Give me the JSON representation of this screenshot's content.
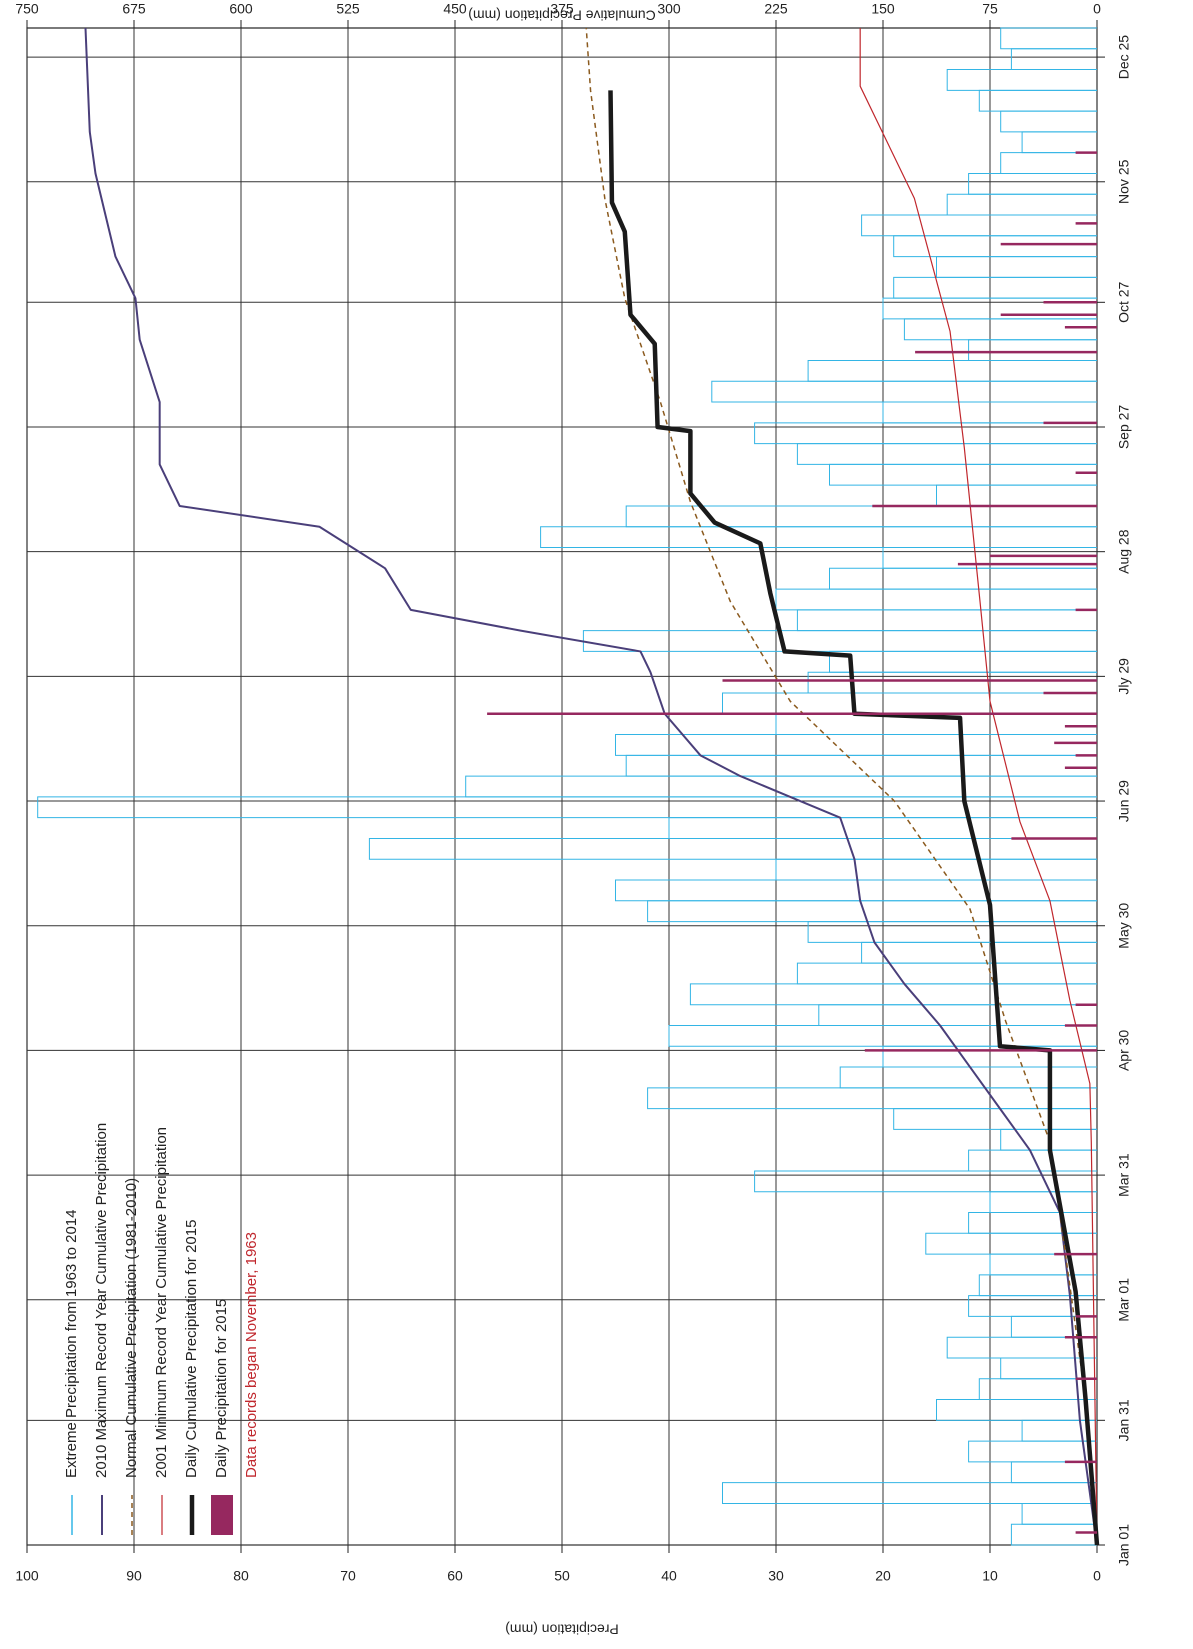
{
  "chart_data": {
    "type": "line",
    "x_label": null,
    "y_label": "Precipitation (mm)",
    "y2_label": "Cumulative Precipitation (mm)",
    "xlim": [
      0,
      365
    ],
    "xticks": [
      {
        "value": 0,
        "label": "Jan 01"
      },
      {
        "value": 30,
        "label": "Jan 31"
      },
      {
        "value": 59,
        "label": "Mar 01"
      },
      {
        "value": 89,
        "label": "Mar 31"
      },
      {
        "value": 119,
        "label": "Apr 30"
      },
      {
        "value": 149,
        "label": "May 30"
      },
      {
        "value": 179,
        "label": "Jun 29"
      },
      {
        "value": 209,
        "label": "Jly 29"
      },
      {
        "value": 239,
        "label": "Aug 28"
      },
      {
        "value": 269,
        "label": "Sep 27"
      },
      {
        "value": 299,
        "label": "Oct 27"
      },
      {
        "value": 328,
        "label": "Nov 25"
      },
      {
        "value": 358,
        "label": "Dec 25"
      }
    ],
    "ylim": [
      0,
      100
    ],
    "yticks": [
      0,
      10,
      20,
      30,
      40,
      50,
      60,
      70,
      80,
      90,
      100
    ],
    "y2lim": [
      0,
      750
    ],
    "y2ticks": [
      0,
      75,
      150,
      225,
      300,
      375,
      450,
      525,
      600,
      675,
      750
    ],
    "grid": true,
    "legend": "upper left",
    "series": [
      {
        "name": "Extreme Precipitation from 1963 to 2014",
        "type": "bar",
        "color": "#33b5e5",
        "x": [
          0,
          5,
          10,
          15,
          20,
          25,
          30,
          35,
          40,
          45,
          50,
          55,
          60,
          65,
          70,
          75,
          80,
          85,
          90,
          95,
          100,
          105,
          110,
          115,
          120,
          125,
          130,
          135,
          140,
          145,
          150,
          155,
          160,
          165,
          170,
          175,
          180,
          185,
          190,
          195,
          200,
          205,
          210,
          215,
          220,
          225,
          230,
          235,
          240,
          245,
          250,
          255,
          260,
          265,
          270,
          275,
          280,
          285,
          290,
          295,
          300,
          305,
          310,
          315,
          320,
          325,
          330,
          335,
          340,
          345,
          350,
          355,
          360
        ],
        "values": [
          8,
          7,
          35,
          8,
          12,
          7,
          15,
          11,
          9,
          14,
          8,
          12,
          11,
          10,
          16,
          12,
          10,
          32,
          12,
          9,
          19,
          42,
          24,
          20,
          40,
          26,
          38,
          28,
          22,
          27,
          42,
          45,
          30,
          68,
          40,
          99,
          59,
          44,
          45,
          30,
          35,
          27,
          25,
          48,
          28,
          30,
          25,
          20,
          52,
          44,
          15,
          25,
          28,
          32,
          20,
          36,
          27,
          12,
          18,
          20,
          19,
          15,
          19,
          22,
          14,
          12,
          9,
          7,
          9,
          11,
          14,
          8,
          9
        ]
      },
      {
        "name": "2010 Maximum Record Year Cumulative Precipitation",
        "type": "line",
        "axis": "y2",
        "color": "#4a3f7a",
        "width": 2,
        "x": [
          0,
          30,
          60,
          80,
          95,
          105,
          115,
          125,
          135,
          145,
          155,
          165,
          175,
          180,
          185,
          190,
          200,
          210,
          215,
          220,
          225,
          235,
          245,
          250,
          260,
          275,
          290,
          300,
          310,
          330,
          340,
          365
        ],
        "values": [
          0,
          12,
          19,
          26,
          47,
          68,
          89,
          110,
          135,
          156,
          166,
          170,
          180,
          215,
          250,
          278,
          303,
          313,
          320,
          404,
          481,
          499,
          545,
          643,
          657,
          657,
          671,
          674,
          688,
          702,
          706,
          709
        ]
      },
      {
        "name": "Normal Cumulative Precipitation (1981-2010)",
        "type": "line",
        "axis": "y2",
        "color": "#8b5a1e",
        "width": 1.5,
        "dashed": true,
        "x": [
          0,
          35,
          97,
          126,
          153,
          179,
          203,
          227,
          251,
          275,
          300,
          324,
          350,
          365
        ],
        "values": [
          0,
          8,
          33,
          64,
          89,
          142,
          215,
          257,
          285,
          306,
          331,
          345,
          355,
          358
        ]
      },
      {
        "name": "2001 Minimum Record Year Cumulative Precipitation",
        "type": "line",
        "axis": "y2",
        "color": "#c0272d",
        "width": 1.2,
        "x": [
          0,
          97,
          111,
          131,
          155,
          174,
          203,
          227,
          264,
          292,
          324,
          351,
          365
        ],
        "values": [
          0,
          4,
          5,
          19,
          33,
          54,
          75,
          82,
          93,
          103,
          128,
          166,
          166
        ]
      },
      {
        "name": "Daily Cumulative Precipitation for 2015",
        "type": "line",
        "axis": "y2",
        "color": "#1a1a1a",
        "width": 4.5,
        "x": [
          0,
          35,
          61,
          95,
          119,
          120,
          154,
          179,
          199,
          200,
          214,
          215,
          229,
          241,
          246,
          253,
          268,
          269,
          289,
          296,
          316,
          323,
          350
        ],
        "values": [
          0,
          8,
          15,
          33,
          33,
          68,
          75,
          93,
          96,
          170,
          173,
          219,
          229,
          236,
          268,
          285,
          285,
          308,
          310,
          327,
          331,
          340,
          341
        ]
      },
      {
        "name": "Daily Precipitation for 2015",
        "type": "bar",
        "color": "#96285f",
        "width": 2.5,
        "x": [
          3,
          20,
          40,
          50,
          55,
          70,
          119,
          125,
          130,
          170,
          187,
          190,
          193,
          197,
          200,
          205,
          208,
          225,
          236,
          238,
          250,
          258,
          270,
          287,
          293,
          296,
          299,
          313,
          318,
          335
        ],
        "values": [
          2,
          3,
          2,
          3,
          2,
          4,
          21.7,
          3,
          2,
          8,
          3,
          2,
          4,
          3,
          57,
          5,
          35,
          2,
          13,
          10,
          21,
          2,
          5,
          17,
          3,
          9,
          5,
          9,
          2,
          2
        ]
      }
    ],
    "annotation": {
      "text": "Data records began November, 1963",
      "color": "#c0272d"
    }
  }
}
